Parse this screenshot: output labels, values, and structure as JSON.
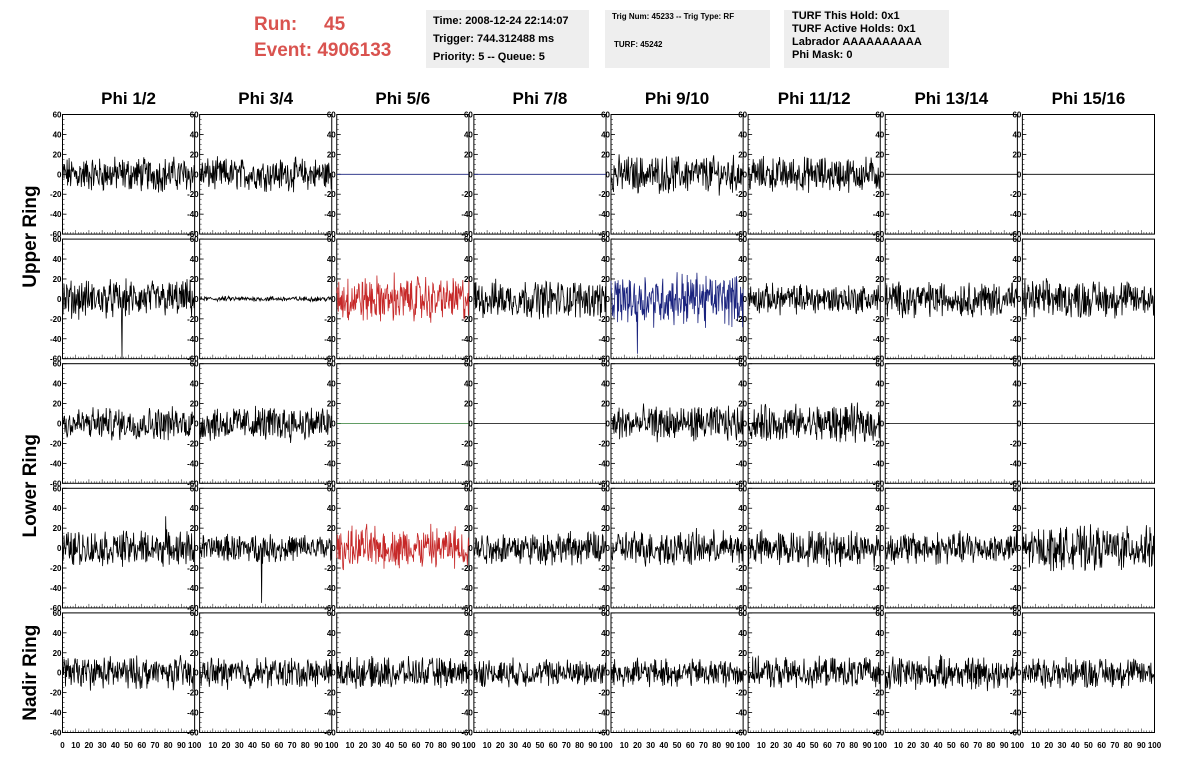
{
  "header": {
    "run_label": "Run:",
    "run_value": "45",
    "event_label": "Event:",
    "event_value": "4906133",
    "time": "Time: 2008-12-24 22:14:07",
    "trigger": "Trigger: 744.312488 ms",
    "priority": "Priority: 5 -- Queue: 5",
    "trig_num": "Trig Num: 45233 -- Trig Type: RF",
    "turf": "TURF: 45242",
    "turf_this_hold": "TURF This Hold: 0x1",
    "turf_active_holds": "TURF Active Holds: 0x1",
    "labrador": "Labrador AAAAAAAAAA",
    "phi_mask": "Phi Mask: 0"
  },
  "colors": {
    "black": "#000000",
    "red": "#c62828",
    "blue": "#1a237e",
    "green": "#2e7d32"
  },
  "chart_data": {
    "type": "line",
    "columns": [
      "Phi 1/2",
      "Phi 3/4",
      "Phi 5/6",
      "Phi 7/8",
      "Phi 9/10",
      "Phi 11/12",
      "Phi 13/14",
      "Phi 15/16"
    ],
    "ring_labels": [
      "Upper Ring",
      "Lower Ring",
      "Nadir Ring"
    ],
    "xlim": [
      0,
      100
    ],
    "ylim": [
      -60,
      60
    ],
    "y_ticks": [
      "60",
      "40",
      "20",
      "0",
      "-20",
      "-40",
      "-60"
    ],
    "x_tick_labels": [
      "0",
      "10",
      "20",
      "30",
      "40",
      "50",
      "60",
      "70",
      "80",
      "90",
      "100"
    ],
    "panels": [
      [
        {
          "color": "black",
          "amp": 14,
          "spike": null
        },
        {
          "color": "black",
          "amp": 13,
          "spike": null
        },
        {
          "color": "blue",
          "amp": 0,
          "spike": null
        },
        {
          "color": "blue",
          "amp": 0,
          "spike": null
        },
        {
          "color": "black",
          "amp": 15,
          "spike": null
        },
        {
          "color": "black",
          "amp": 14,
          "spike": null
        },
        {
          "color": "black",
          "amp": 0,
          "spike": null
        },
        {
          "color": "black",
          "amp": 0,
          "spike": null
        }
      ],
      [
        {
          "color": "black",
          "amp": 15,
          "spike": [
            45,
            -60
          ]
        },
        {
          "color": "black",
          "amp": 2,
          "spike": null
        },
        {
          "color": "red",
          "amp": 18,
          "spike": null
        },
        {
          "color": "black",
          "amp": 15,
          "spike": null
        },
        {
          "color": "blue",
          "amp": 20,
          "spike": [
            20,
            -55
          ]
        },
        {
          "color": "black",
          "amp": 12,
          "spike": null
        },
        {
          "color": "black",
          "amp": 14,
          "spike": null
        },
        {
          "color": "black",
          "amp": 15,
          "spike": null
        }
      ],
      [
        {
          "color": "black",
          "amp": 13,
          "spike": null
        },
        {
          "color": "black",
          "amp": 14,
          "spike": null
        },
        {
          "color": "green",
          "amp": 0,
          "spike": null
        },
        {
          "color": "black",
          "amp": 0,
          "spike": null
        },
        {
          "color": "black",
          "amp": 14,
          "spike": null
        },
        {
          "color": "black",
          "amp": 15,
          "spike": null
        },
        {
          "color": "black",
          "amp": 0,
          "spike": null
        },
        {
          "color": "black",
          "amp": 0,
          "spike": null
        }
      ],
      [
        {
          "color": "black",
          "amp": 14,
          "spike": [
            78,
            32
          ]
        },
        {
          "color": "black",
          "amp": 11,
          "spike": [
            47,
            -55
          ]
        },
        {
          "color": "red",
          "amp": 16,
          "spike": null
        },
        {
          "color": "black",
          "amp": 13,
          "spike": null
        },
        {
          "color": "black",
          "amp": 14,
          "spike": null
        },
        {
          "color": "black",
          "amp": 14,
          "spike": null
        },
        {
          "color": "black",
          "amp": 13,
          "spike": null
        },
        {
          "color": "black",
          "amp": 17,
          "spike": null
        }
      ],
      [
        {
          "color": "black",
          "amp": 13,
          "spike": null
        },
        {
          "color": "black",
          "amp": 12,
          "spike": null
        },
        {
          "color": "black",
          "amp": 12,
          "spike": null
        },
        {
          "color": "black",
          "amp": 11,
          "spike": null
        },
        {
          "color": "black",
          "amp": 11,
          "spike": null
        },
        {
          "color": "black",
          "amp": 12,
          "spike": null
        },
        {
          "color": "black",
          "amp": 13,
          "spike": null
        },
        {
          "color": "black",
          "amp": 12,
          "spike": null
        }
      ]
    ]
  }
}
